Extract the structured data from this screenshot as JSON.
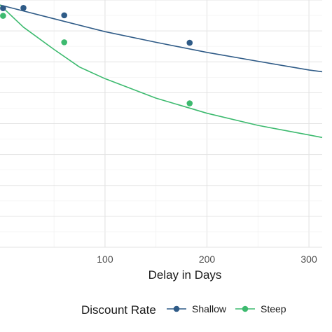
{
  "chart_data": {
    "type": "line",
    "xlabel": "Delay in Days",
    "x_ticks": [
      100,
      200,
      300
    ],
    "xlim": [
      -3,
      313
    ],
    "ylim": [
      0,
      1
    ],
    "grid": true,
    "legend": {
      "title": "Discount Rate",
      "placement": "bottom",
      "entries": [
        "Shallow",
        "Steep"
      ]
    },
    "series": [
      {
        "name": "Shallow",
        "color": "#2f5b87",
        "points": {
          "x": [
            0,
            20,
            60,
            183
          ],
          "y": [
            0.967,
            0.968,
            0.938,
            0.827
          ]
        },
        "curve": {
          "x": [
            -3,
            50,
            100,
            150,
            200,
            250,
            300,
            313
          ],
          "y": [
            0.98,
            0.924,
            0.872,
            0.829,
            0.788,
            0.752,
            0.717,
            0.71
          ]
        }
      },
      {
        "name": "Steep",
        "color": "#3dba6f",
        "points": {
          "x": [
            0,
            60,
            183
          ],
          "y": [
            0.936,
            0.829,
            0.582
          ]
        },
        "curve": {
          "x": [
            -3,
            20,
            50,
            75,
            100,
            150,
            200,
            250,
            300,
            313
          ],
          "y": [
            0.98,
            0.89,
            0.8,
            0.729,
            0.682,
            0.603,
            0.542,
            0.493,
            0.454,
            0.444
          ]
        }
      }
    ]
  }
}
